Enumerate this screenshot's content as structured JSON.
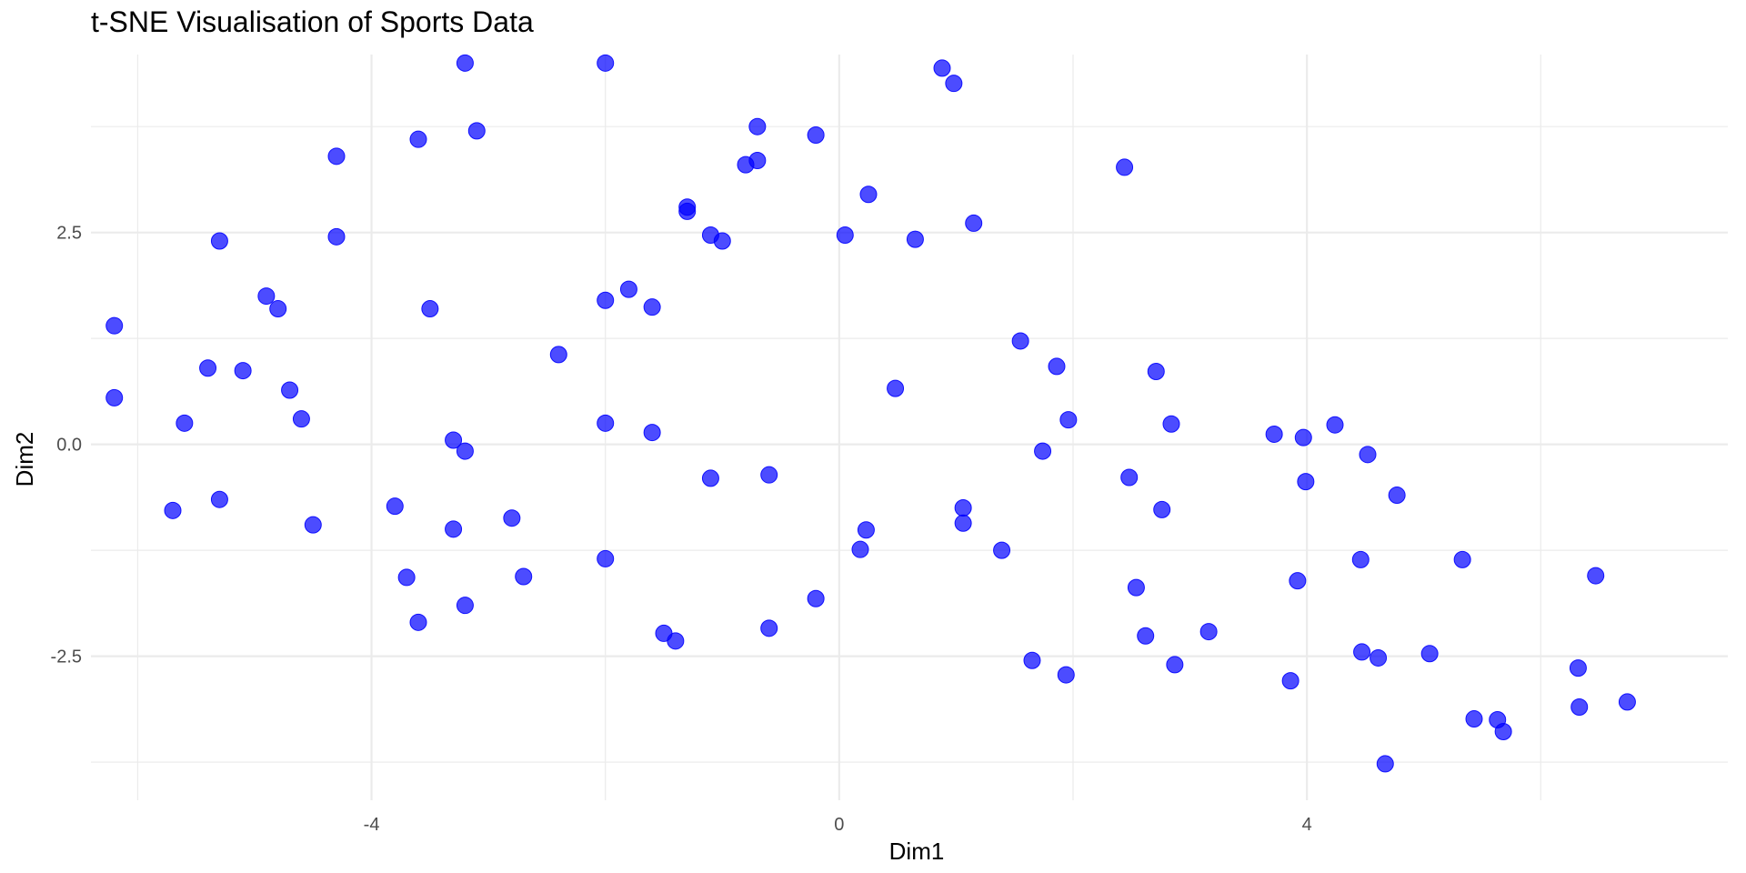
{
  "chart_data": {
    "type": "scatter",
    "title": "t-SNE Visualisation of Sports Data",
    "xlabel": "Dim1",
    "ylabel": "Dim2",
    "xlim": [
      -6.4,
      7.6
    ],
    "ylim": [
      -4.2,
      4.6
    ],
    "x_ticks": [
      -4,
      0,
      4
    ],
    "x_tick_labels": [
      "-4",
      "0",
      "4"
    ],
    "y_ticks": [
      -2.5,
      0.0,
      2.5
    ],
    "y_tick_labels": [
      "-2.5",
      "0.0",
      "2.5"
    ],
    "grid": true,
    "legend": "none",
    "point_color": "#0000ff",
    "point_opacity": 0.7,
    "background": "#ffffff",
    "grid_color": "#ebebeb",
    "x": [
      -2.0,
      -3.2,
      -4.3,
      -3.6,
      -3.1,
      -5.3,
      -6.2,
      -4.3,
      -4.9,
      -4.8,
      -3.5,
      -2.4,
      -5.4,
      -5.1,
      -4.7,
      -4.6,
      -5.6,
      -6.2,
      -5.7,
      -5.3,
      -4.5,
      -3.3,
      -3.2,
      -3.8,
      -3.7,
      -3.6,
      -3.2,
      -3.3,
      -2.8,
      -2.7,
      -2.0,
      -2.0,
      -1.8,
      -1.6,
      -1.6,
      -1.3,
      -1.3,
      -1.5,
      -1.4,
      -1.1,
      -1.0,
      -0.8,
      -0.7,
      -0.2,
      -0.6,
      -0.6,
      -0.2,
      0.05,
      0.25,
      0.65,
      0.18,
      0.23,
      0.48,
      0.88,
      0.98,
      1.15,
      1.06,
      1.55,
      1.86,
      1.74,
      1.96,
      1.39,
      1.06,
      1.65,
      1.94,
      2.44,
      2.71,
      2.84,
      2.48,
      2.54,
      2.62,
      2.76,
      2.87,
      3.16,
      3.72,
      3.97,
      3.99,
      4.24,
      4.52,
      4.77,
      3.92,
      3.86,
      4.46,
      4.61,
      4.47,
      5.05,
      5.33,
      4.67,
      5.43,
      5.63,
      5.68,
      6.32,
      6.33,
      6.47,
      6.74,
      -0.7,
      -1.1,
      -2.0
    ],
    "y": [
      4.5,
      4.5,
      3.4,
      3.6,
      3.7,
      2.4,
      1.4,
      2.45,
      1.75,
      1.6,
      1.6,
      1.06,
      0.9,
      0.87,
      0.64,
      0.3,
      0.25,
      0.55,
      -0.78,
      -0.65,
      -0.95,
      0.05,
      -0.08,
      -0.73,
      -1.57,
      -2.1,
      -1.9,
      -1.0,
      -0.87,
      -1.56,
      0.25,
      1.7,
      1.83,
      1.62,
      0.14,
      2.75,
      2.8,
      -2.23,
      -2.32,
      2.47,
      2.4,
      3.3,
      3.75,
      3.65,
      -0.36,
      -2.17,
      -1.82,
      2.47,
      2.95,
      2.42,
      -1.24,
      -1.01,
      0.66,
      4.44,
      4.26,
      2.61,
      -0.93,
      1.22,
      0.92,
      -0.08,
      0.29,
      -1.25,
      -0.75,
      -2.55,
      -2.72,
      3.27,
      0.86,
      0.24,
      -0.39,
      -1.69,
      -2.26,
      -0.77,
      -2.6,
      -2.21,
      0.12,
      0.08,
      -0.44,
      0.23,
      -0.12,
      -0.6,
      -1.61,
      -2.79,
      -1.36,
      -2.52,
      -2.45,
      -2.47,
      -1.36,
      -3.77,
      -3.24,
      -3.25,
      -3.39,
      -2.64,
      -3.1,
      -1.55,
      -3.04,
      3.35,
      -0.4,
      -1.35
    ]
  }
}
